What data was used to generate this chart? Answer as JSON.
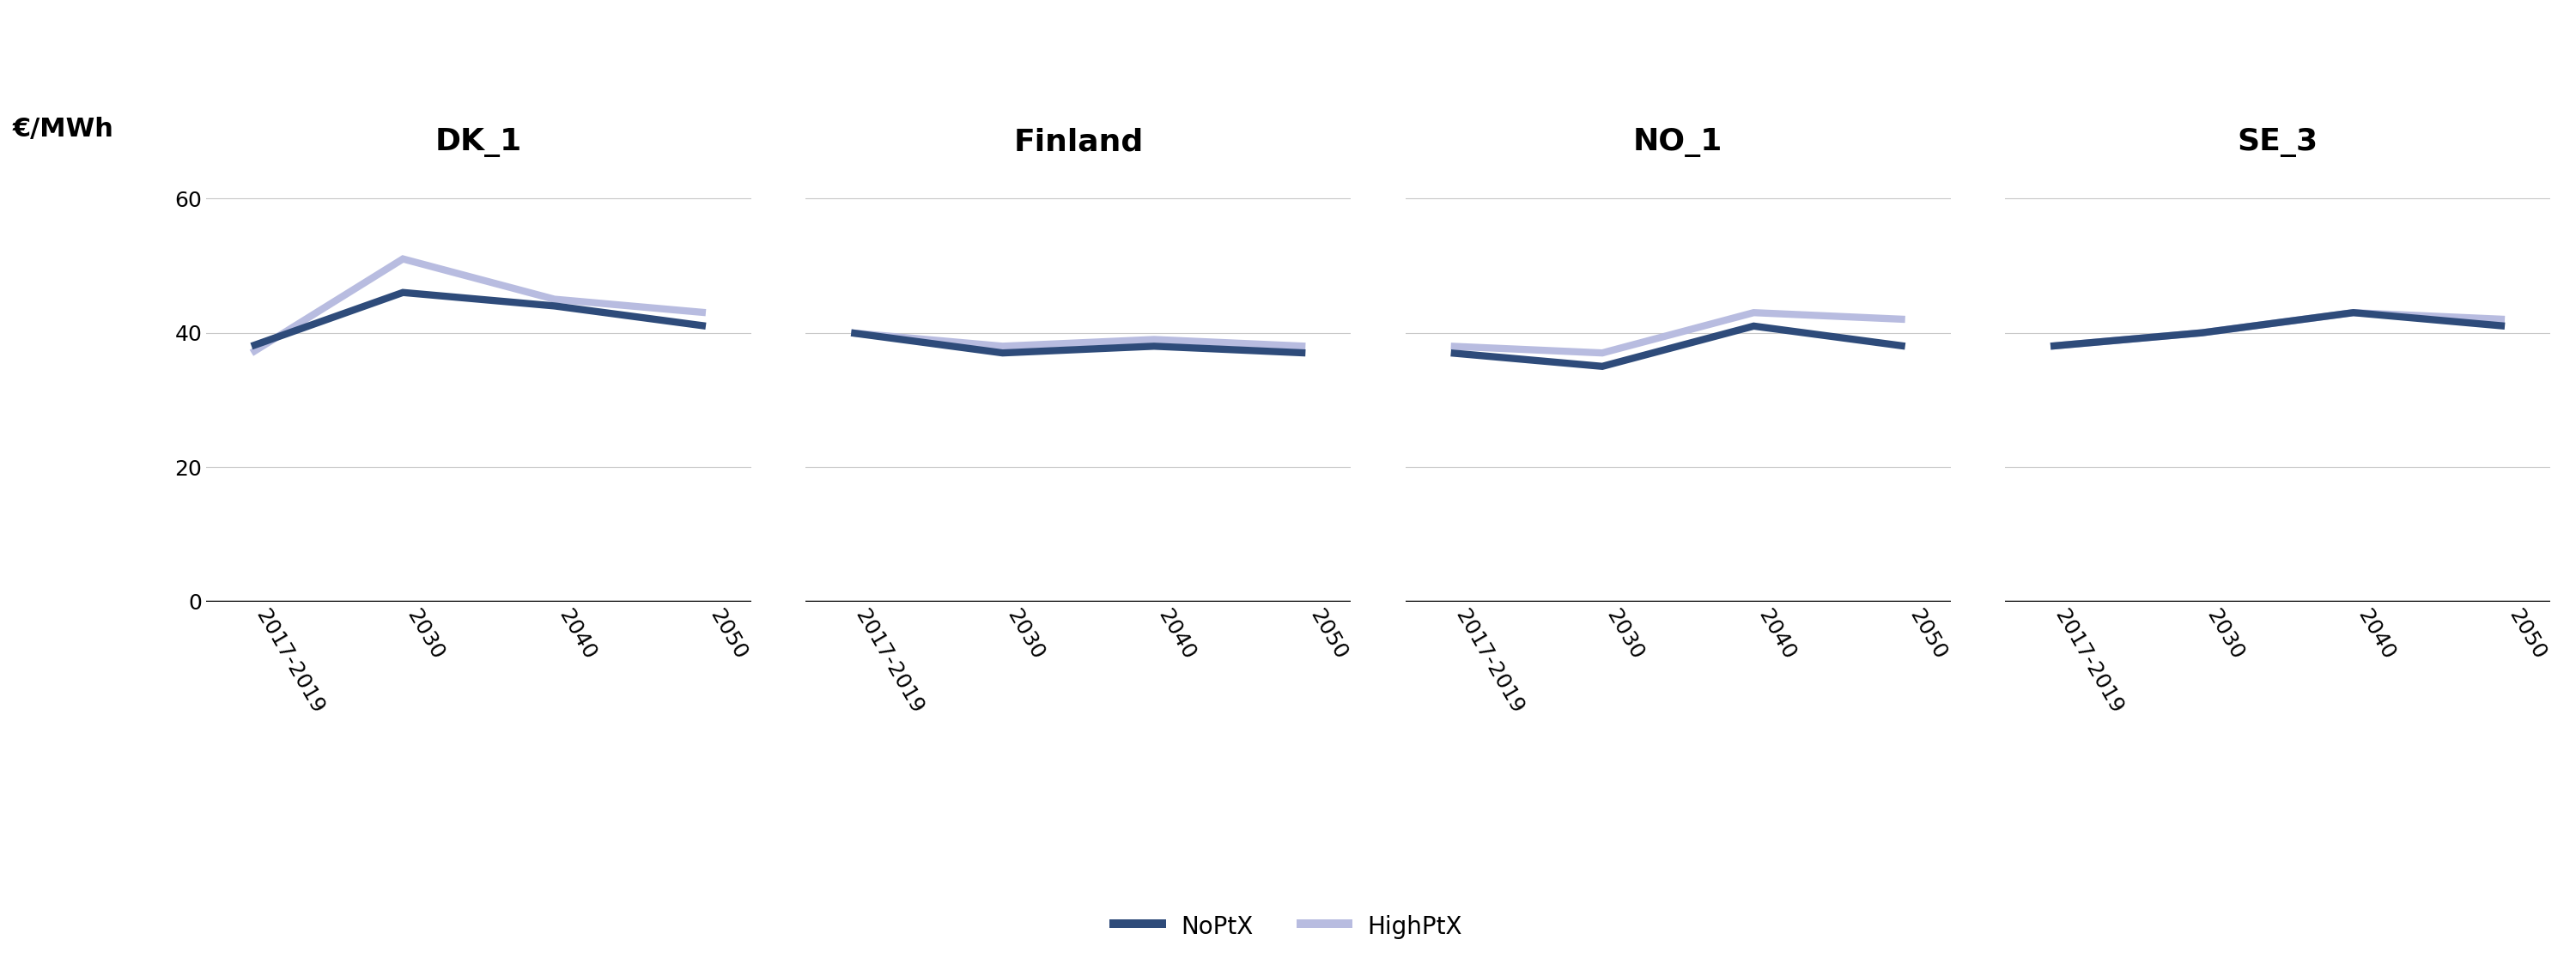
{
  "subplots": [
    {
      "title": "DK_1",
      "noptx": [
        38,
        46,
        44,
        41
      ],
      "highptx": [
        37,
        51,
        45,
        43
      ]
    },
    {
      "title": "Finland",
      "noptx": [
        40,
        37,
        38,
        37
      ],
      "highptx": [
        40,
        38,
        39,
        38
      ]
    },
    {
      "title": "NO_1",
      "noptx": [
        37,
        35,
        41,
        38
      ],
      "highptx": [
        38,
        37,
        43,
        42
      ]
    },
    {
      "title": "SE_3",
      "noptx": [
        38,
        40,
        43,
        41
      ],
      "highptx": [
        38,
        40,
        43,
        42
      ]
    }
  ],
  "x_labels": [
    "2017-2019",
    "2030",
    "2040",
    "2050"
  ],
  "x_positions": [
    0,
    1,
    2,
    3
  ],
  "ylabel": "€/MWh",
  "ylim": [
    0,
    65
  ],
  "yticks": [
    0,
    20,
    40,
    60
  ],
  "color_noptx": "#2e4b7a",
  "color_highptx": "#b8bce0",
  "linewidth": 6,
  "legend_noptx": "NoPtX",
  "legend_highptx": "HighPtX",
  "background_color": "#ffffff",
  "title_fontsize": 26,
  "tick_fontsize": 18,
  "ylabel_fontsize": 22,
  "legend_fontsize": 20,
  "grid_color": "#c8c8c8",
  "grid_linewidth": 0.8,
  "axhline_linewidth": 2.5
}
